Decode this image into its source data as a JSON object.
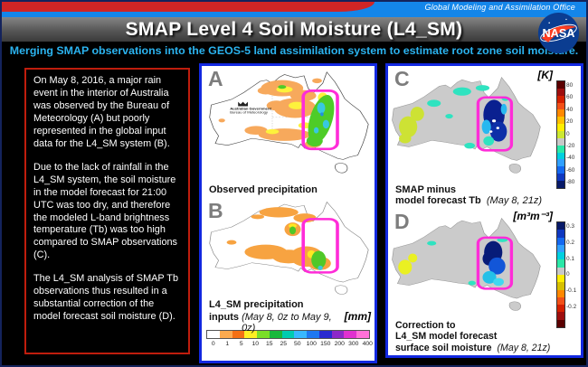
{
  "header": {
    "office_label": "Global Modeling and Assimilation Office",
    "title": "SMAP Level 4 Soil Moisture (L4_SM)",
    "subtitle": "Merging SMAP observations into the GEOS-5 land assimilation system to estimate root zone soil moisture.",
    "nasa_wordmark": "NASA"
  },
  "colors": {
    "top_bar_blue": "#1486ea",
    "swoosh_red": "#d02525",
    "subtitle_cyan": "#2bb3ef",
    "note_border_red": "#bf1d0d",
    "panel_border_blue": "#1228e0",
    "highlight_magenta": "#ff2cd8",
    "nasa_blue": "#0b3d91",
    "nasa_red": "#fc3d21"
  },
  "note_box": {
    "paragraphs": [
      "On May 8, 2016, a major rain event in the interior of Australia was observed by the Bureau of Meteorology (A) but poorly represented in the global input data for the L4_SM system (B).",
      "Due to the lack of rainfall in the L4_SM system, the soil moisture in the model forecast for 21:00 UTC was too dry, and therefore the modeled L-band brightness temperature (Tb) was too high compared to SMAP observations (C).",
      "The L4_SM analysis of SMAP Tb observations thus resulted in a substantial correction of the model forecast soil moisture (D)."
    ]
  },
  "panel_a": {
    "label": "A",
    "caption": "Observed precipitation",
    "bom_logo_line1": "Australian Government",
    "bom_logo_line2": "Bureau of Meteorology"
  },
  "panel_b": {
    "label": "B",
    "caption_line1": "L4_SM precipitation",
    "caption_line2_bold": "inputs",
    "caption_date": "(May 8, 0z to May 9, 0z)",
    "unit": "[mm]",
    "colorbar": {
      "tick_labels": [
        "0",
        "1",
        "5",
        "10",
        "15",
        "25",
        "50",
        "100",
        "150",
        "200",
        "300",
        "400"
      ],
      "colors": [
        "#ffffff",
        "#fbaa50",
        "#f47014",
        "#ffee22",
        "#7ade28",
        "#18b83c",
        "#00ccb0",
        "#38b8ff",
        "#1f78f0",
        "#2a2ad0",
        "#8c28c8",
        "#e030d0",
        "#ff70d8"
      ]
    }
  },
  "panel_c": {
    "label": "C",
    "caption_line1": "SMAP minus",
    "caption_line2": "model forecast Tb",
    "caption_date": "(May 8, 21z)",
    "unit": "[K]",
    "colorbar": {
      "tick_labels": [
        "80",
        "60",
        "40",
        "20",
        "0",
        "-20",
        "-40",
        "-60",
        "-80"
      ],
      "colors": [
        "#5a0000",
        "#9e0e0e",
        "#d42000",
        "#f25018",
        "#ff8800",
        "#ffc000",
        "#ffee00",
        "#cce832",
        "#c8c8c8",
        "#2ae8a8",
        "#00d0e0",
        "#30a0ff",
        "#1468f0",
        "#0f38c0",
        "#081a68"
      ]
    }
  },
  "panel_d": {
    "label": "D",
    "caption_line1": "Correction to",
    "caption_line2": "L4_SM model forecast",
    "caption_line3": "surface soil moisture",
    "caption_date": "(May 8, 21z)",
    "unit": "[m³m⁻³]",
    "colorbar": {
      "tick_labels": [
        "0.3",
        "0.2",
        "0.1",
        "0",
        "-0.1",
        "-0.2"
      ],
      "colors": [
        "#081a68",
        "#0f38c0",
        "#1468f0",
        "#30a0ff",
        "#00d0e0",
        "#2ae8a8",
        "#c8c8c8",
        "#ffee00",
        "#d8c000",
        "#ff8800",
        "#f25018",
        "#d42000",
        "#9e0e0e",
        "#5a0000"
      ]
    }
  }
}
